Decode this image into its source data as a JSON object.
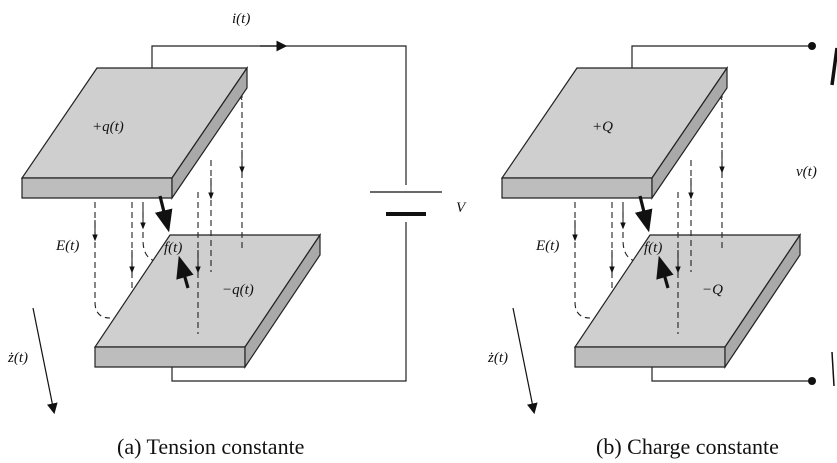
{
  "panel_a": {
    "current_label": "i(t)",
    "top_charge_label": "+q(t)",
    "bottom_charge_label": "−q(t)",
    "field_label": "E(t)",
    "force_label": "f(t)",
    "velocity_label": "ż(t)",
    "voltage_label": "V",
    "caption": "(a)  Tension constante"
  },
  "panel_b": {
    "top_charge_label": "+Q",
    "bottom_charge_label": "−Q",
    "field_label": "E(t)",
    "force_label": "f(t)",
    "velocity_label": "ż(t)",
    "voltage_label": "v(t)",
    "caption": "(b)  Charge constante"
  }
}
